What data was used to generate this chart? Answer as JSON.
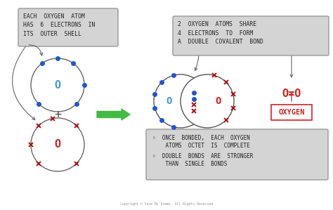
{
  "bg_color": "#ffffff",
  "electron_blue": "#2255cc",
  "electron_red": "#aa1111",
  "atom_blue": "#4499dd",
  "atom_red": "#cc2222",
  "shell_color": "#555555",
  "box_bg": "#d4d4d4",
  "box_edge": "#999999",
  "text_color": "#222222",
  "arrow_green": "#44bb44",
  "arrow_gray": "#666666",
  "label_top": "EACH  OXYGEN  ATOM\nHAS  6  ELECTRONS  IN\nITS  OUTER  SHELL",
  "label_right_top": "2  OXYGEN  ATOMS  SHARE\n4  ELECTRONS  TO  FORM\nA  DOUBLE  COVALENT  BOND",
  "bullet1a": "◦  ONCE  BONDED,  EACH  OXYGEN",
  "bullet1b": "    ATOMS  OCTET  IS  COMPLETE",
  "bullet2a": "◦  DOUBLE  BONDS  ARE  STRONGER",
  "bullet2b": "    THAN  SINGLE  BONDS",
  "oxygen_label": "OXYGEN",
  "bond_formula": "O=O",
  "copyright": "Copyright © Save My Exams. All Rights Reserved"
}
